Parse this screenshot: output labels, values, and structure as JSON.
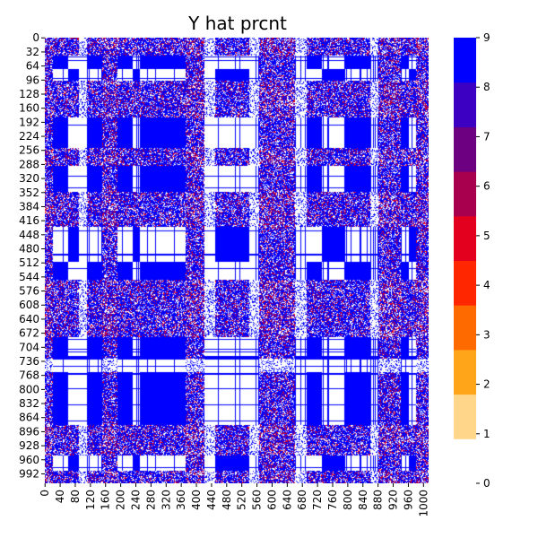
{
  "chart_data": {
    "type": "heatmap",
    "title": "Y hat prcnt",
    "xlabel": "",
    "ylabel": "",
    "n_rows": 1014,
    "n_cols": 1014,
    "x_ticks": [
      0,
      40,
      80,
      120,
      160,
      200,
      240,
      280,
      320,
      360,
      400,
      440,
      480,
      520,
      560,
      600,
      640,
      680,
      720,
      760,
      800,
      840,
      880,
      920,
      960,
      1000
    ],
    "y_ticks": [
      0,
      32,
      64,
      96,
      128,
      160,
      192,
      224,
      256,
      288,
      320,
      352,
      384,
      416,
      448,
      480,
      512,
      544,
      576,
      608,
      640,
      672,
      704,
      736,
      768,
      800,
      832,
      864,
      896,
      928,
      960,
      992
    ],
    "colorbar": {
      "min": 0,
      "max": 9,
      "ticks": [
        0,
        1,
        2,
        3,
        4,
        5,
        6,
        7,
        8,
        9
      ],
      "colors": [
        "#ffffff",
        "#ffd68a",
        "#ffa51a",
        "#ff6a00",
        "#ff2600",
        "#e3001f",
        "#a8004f",
        "#6c0080",
        "#3c00c2",
        "#0000ff"
      ]
    },
    "colors": {
      "zero": "#ffffff",
      "high": "#0000ff",
      "mid_red": "#e3001f",
      "mid_purple": "#6c0080"
    },
    "blocks": {
      "cols": [
        {
          "start": 0,
          "end": 20,
          "type": "noisy"
        },
        {
          "start": 20,
          "end": 60,
          "type": "a"
        },
        {
          "start": 60,
          "end": 90,
          "type": "b"
        },
        {
          "start": 90,
          "end": 110,
          "type": "gap"
        },
        {
          "start": 110,
          "end": 150,
          "type": "a"
        },
        {
          "start": 150,
          "end": 190,
          "type": "noisy"
        },
        {
          "start": 190,
          "end": 230,
          "type": "a"
        },
        {
          "start": 230,
          "end": 250,
          "type": "b"
        },
        {
          "start": 250,
          "end": 330,
          "type": "a"
        },
        {
          "start": 330,
          "end": 370,
          "type": "a"
        },
        {
          "start": 370,
          "end": 420,
          "type": "noisy"
        },
        {
          "start": 420,
          "end": 450,
          "type": "gap"
        },
        {
          "start": 450,
          "end": 500,
          "type": "b"
        },
        {
          "start": 500,
          "end": 540,
          "type": "b"
        },
        {
          "start": 540,
          "end": 565,
          "type": "gap"
        },
        {
          "start": 565,
          "end": 660,
          "type": "noisy"
        },
        {
          "start": 660,
          "end": 690,
          "type": "gap"
        },
        {
          "start": 690,
          "end": 730,
          "type": "a"
        },
        {
          "start": 730,
          "end": 790,
          "type": "b"
        },
        {
          "start": 790,
          "end": 860,
          "type": "a"
        },
        {
          "start": 860,
          "end": 880,
          "type": "gap"
        },
        {
          "start": 880,
          "end": 940,
          "type": "noisy"
        },
        {
          "start": 940,
          "end": 960,
          "type": "a"
        },
        {
          "start": 960,
          "end": 980,
          "type": "b"
        },
        {
          "start": 980,
          "end": 1014,
          "type": "noisy"
        }
      ],
      "rows": [
        {
          "start": 0,
          "end": 40,
          "type": "noisy"
        },
        {
          "start": 40,
          "end": 70,
          "type": "a"
        },
        {
          "start": 70,
          "end": 96,
          "type": "b"
        },
        {
          "start": 96,
          "end": 180,
          "type": "noisy"
        },
        {
          "start": 180,
          "end": 250,
          "type": "a"
        },
        {
          "start": 250,
          "end": 290,
          "type": "noisy"
        },
        {
          "start": 290,
          "end": 350,
          "type": "a"
        },
        {
          "start": 350,
          "end": 430,
          "type": "noisy"
        },
        {
          "start": 430,
          "end": 470,
          "type": "b"
        },
        {
          "start": 470,
          "end": 510,
          "type": "b"
        },
        {
          "start": 510,
          "end": 550,
          "type": "a"
        },
        {
          "start": 550,
          "end": 680,
          "type": "noisy"
        },
        {
          "start": 680,
          "end": 730,
          "type": "a"
        },
        {
          "start": 730,
          "end": 760,
          "type": "gap"
        },
        {
          "start": 760,
          "end": 880,
          "type": "a"
        },
        {
          "start": 880,
          "end": 950,
          "type": "noisy"
        },
        {
          "start": 950,
          "end": 985,
          "type": "b"
        },
        {
          "start": 985,
          "end": 1014,
          "type": "noisy"
        }
      ]
    }
  }
}
